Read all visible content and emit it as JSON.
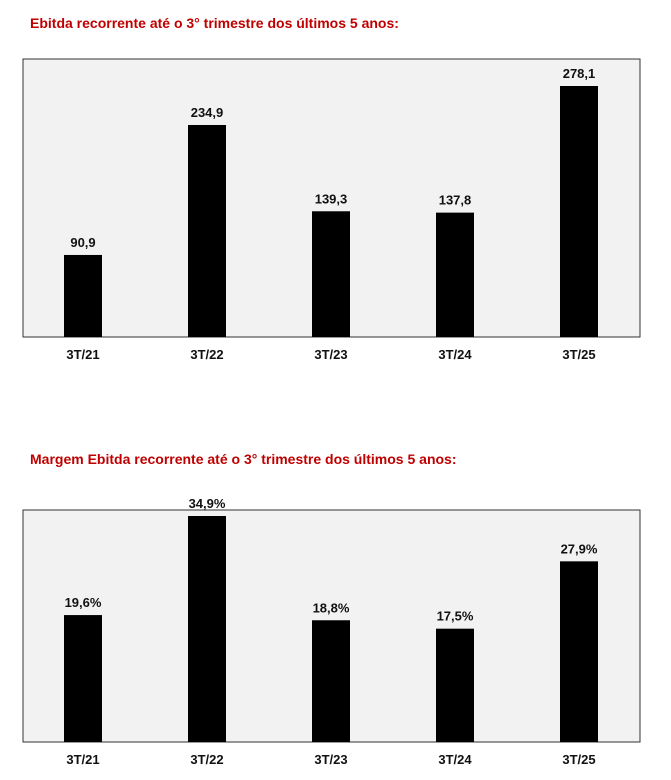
{
  "charts": [
    {
      "title": "Ebitda recorrente até o 3° trimestre dos últimos 5 anos:"
    },
    {
      "title": "Margem Ebitda recorrente até o 3° trimestre dos últimos 5 anos:"
    }
  ],
  "colors": {
    "title": "#c00000",
    "bar": "#000000",
    "plot_background": "#f2f2f2",
    "plot_border": "#333333"
  },
  "chart_data": [
    {
      "type": "bar",
      "title": "Ebitda recorrente até o 3° trimestre dos últimos 5 anos:",
      "categories": [
        "3T/21",
        "3T/22",
        "3T/23",
        "3T/24",
        "3T/25"
      ],
      "values": [
        90.9,
        234.9,
        139.3,
        137.8,
        278.1
      ],
      "value_labels": [
        "90,9",
        "234,9",
        "139,3",
        "137,8",
        "278,1"
      ],
      "xlabel": "",
      "ylabel": "",
      "ylim": [
        0,
        300
      ],
      "grid": false,
      "legend": "none"
    },
    {
      "type": "bar",
      "title": "Margem Ebitda recorrente até o 3° trimestre dos últimos 5 anos:",
      "categories": [
        "3T/21",
        "3T/22",
        "3T/23",
        "3T/24",
        "3T/25"
      ],
      "values": [
        19.6,
        34.9,
        18.8,
        17.5,
        27.9
      ],
      "value_labels": [
        "19,6%",
        "34,9%",
        "18,8%",
        "17,5%",
        "27,9%"
      ],
      "xlabel": "",
      "ylabel": "",
      "ylim": [
        0,
        38
      ],
      "grid": false,
      "legend": "none"
    }
  ]
}
